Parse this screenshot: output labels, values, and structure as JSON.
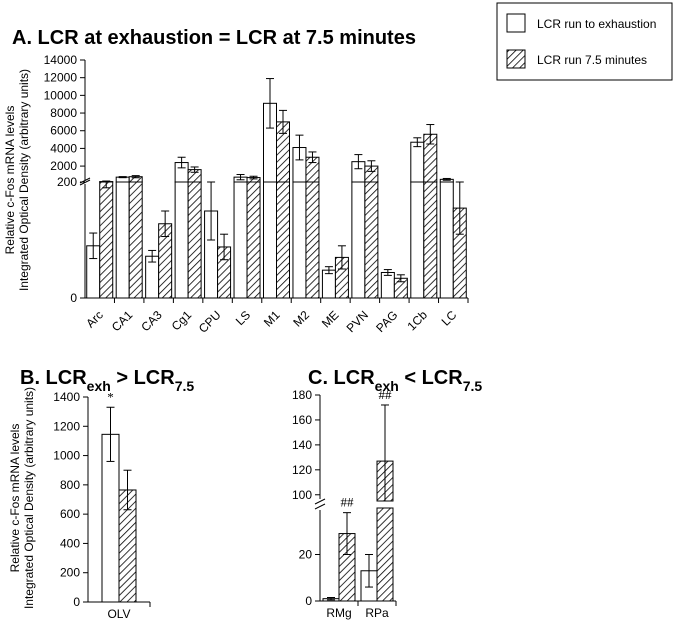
{
  "legend": {
    "items": [
      {
        "label": "LCR run to exhaustion",
        "pattern": "white"
      },
      {
        "label": "LCR run 7.5 minutes",
        "pattern": "hatched"
      }
    ]
  },
  "y_axis_title": {
    "line1": "Relative c-Fos mRNA levels",
    "line2": "Integrated Optical Density (arbitrary units)"
  },
  "chart_data": [
    {
      "id": "A",
      "type": "bar",
      "title": "A. LCR at exhaustion = LCR at 7.5 minutes",
      "broken_axis": true,
      "lower_range": [
        0,
        200
      ],
      "upper_range": [
        200,
        14000
      ],
      "lower_ticks": [
        "0",
        "200"
      ],
      "upper_ticks": [
        "2000",
        "4000",
        "6000",
        "8000",
        "10000",
        "12000",
        "14000"
      ],
      "categories": [
        "Arc",
        "CA1",
        "CA3",
        "Cg1",
        "CPU",
        "LS",
        "M1",
        "M2",
        "ME",
        "PVN",
        "PAG",
        "1Cb",
        "LC"
      ],
      "series": [
        {
          "name": "LCR run to exhaustion",
          "values": [
            90,
            750,
            72,
            2400,
            150,
            750,
            9100,
            4100,
            48,
            2500,
            44,
            4700,
            500
          ],
          "errors": [
            22,
            60,
            10,
            600,
            50,
            300,
            2800,
            1400,
            6,
            800,
            5,
            500,
            100
          ]
        },
        {
          "name": "LCR run 7.5 minutes",
          "values": [
            250,
            800,
            128,
            1600,
            88,
            700,
            7000,
            3000,
            70,
            2000,
            34,
            5600,
            155
          ],
          "errors": [
            60,
            120,
            22,
            300,
            22,
            150,
            1300,
            600,
            20,
            600,
            6,
            1100,
            45
          ]
        }
      ]
    },
    {
      "id": "B",
      "type": "bar",
      "title": "B. LCR",
      "title_sub1": "exh",
      "title_mid": " > LCR",
      "title_sub2": "7.5",
      "ylim": [
        0,
        1400
      ],
      "yticks": [
        "0",
        "200",
        "400",
        "600",
        "800",
        "1000",
        "1200",
        "1400"
      ],
      "categories": [
        "OLV"
      ],
      "series": [
        {
          "name": "LCR run to exhaustion",
          "values": [
            1145
          ],
          "errors": [
            185
          ]
        },
        {
          "name": "LCR run 7.5 minutes",
          "values": [
            765
          ],
          "errors": [
            135
          ]
        }
      ],
      "annotations": [
        {
          "category": "OLV",
          "series": 0,
          "text": "*"
        }
      ]
    },
    {
      "id": "C",
      "type": "bar",
      "title": "C. LCR",
      "title_sub1": "exh",
      "title_mid": " < LCR",
      "title_sub2": "7.5",
      "broken_axis": true,
      "lower_range": [
        0,
        40
      ],
      "upper_range": [
        95,
        180
      ],
      "lower_ticks": [
        "0",
        "20"
      ],
      "upper_ticks": [
        "100",
        "120",
        "140",
        "160",
        "180"
      ],
      "categories": [
        "RMg",
        "RPa"
      ],
      "series": [
        {
          "name": "LCR run to exhaustion",
          "values": [
            1,
            13
          ],
          "errors": [
            0.5,
            7
          ]
        },
        {
          "name": "LCR run 7.5 minutes",
          "values": [
            29,
            127
          ],
          "errors": [
            9,
            45
          ]
        }
      ],
      "annotations": [
        {
          "category": "RMg",
          "series": 1,
          "text": "##"
        },
        {
          "category": "RPa",
          "series": 1,
          "text": "##"
        }
      ]
    }
  ]
}
